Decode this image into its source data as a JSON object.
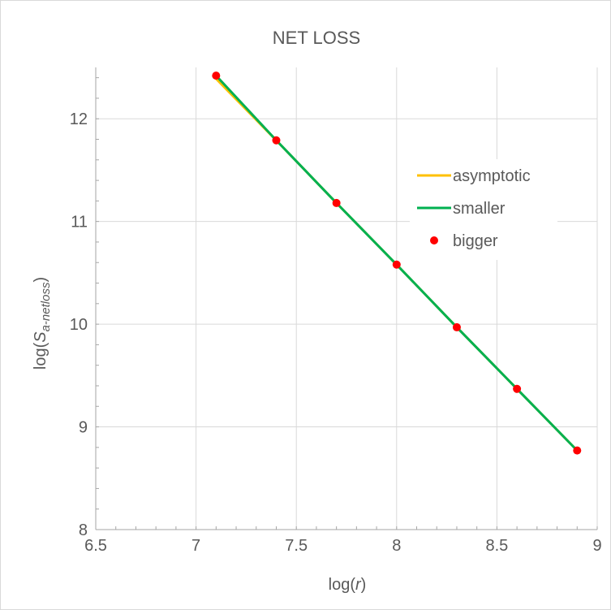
{
  "chart_data": {
    "type": "line",
    "title": "NET LOSS",
    "xlabel_prefix": "log(",
    "xlabel_var": "r",
    "xlabel_suffix": ")",
    "ylabel_prefix": "log(",
    "ylabel_var": "S",
    "ylabel_sub": "a-netloss",
    "ylabel_suffix": ")",
    "xlim": [
      6.5,
      9
    ],
    "ylim": [
      8,
      12.5
    ],
    "xticks": [
      6.5,
      7,
      7.5,
      8,
      8.5,
      9
    ],
    "xtick_labels": [
      "6.5",
      "7",
      "7.5",
      "8",
      "8.5",
      "9"
    ],
    "yticks": [
      8,
      9,
      10,
      11,
      12
    ],
    "ytick_labels": [
      "8",
      "9",
      "10",
      "11",
      "12"
    ],
    "grid": true,
    "legend_position": "right",
    "series": [
      {
        "name": "asymptotic",
        "kind": "line",
        "color": "#FFC000",
        "x": [
          7.1,
          7.4,
          7.7,
          8.0,
          8.3,
          8.6,
          8.9
        ],
        "y": [
          12.39,
          11.79,
          11.18,
          10.58,
          9.97,
          9.37,
          8.77
        ]
      },
      {
        "name": "smaller",
        "kind": "line",
        "color": "#00B050",
        "x": [
          7.1,
          7.4,
          7.7,
          8.0,
          8.3,
          8.6,
          8.9
        ],
        "y": [
          12.42,
          11.79,
          11.18,
          10.58,
          9.97,
          9.37,
          8.77
        ]
      },
      {
        "name": "bigger",
        "kind": "scatter",
        "color": "#FF0000",
        "x": [
          7.1,
          7.4,
          7.7,
          8.0,
          8.3,
          8.6,
          8.9
        ],
        "y": [
          12.42,
          11.79,
          11.18,
          10.58,
          9.97,
          9.37,
          8.77
        ]
      }
    ]
  }
}
